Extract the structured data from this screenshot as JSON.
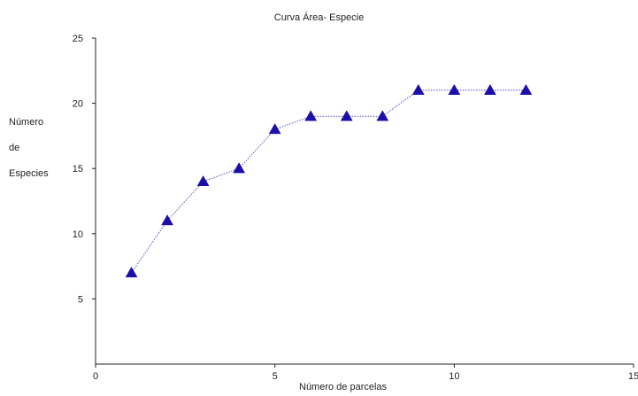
{
  "chart_data": {
    "type": "line",
    "title": "Curva Área- Especie",
    "xlabel": "Número de parcelas",
    "ylabel_lines": [
      "Número",
      "de",
      "Especies"
    ],
    "x": [
      1,
      2,
      3,
      4,
      5,
      6,
      7,
      8,
      9,
      10,
      11,
      12
    ],
    "y": [
      7,
      11,
      14,
      15,
      18,
      19,
      19,
      19,
      21,
      21,
      21,
      21
    ],
    "xlim": [
      0,
      15
    ],
    "ylim": [
      0,
      25
    ],
    "xticks": [
      "0",
      "5",
      "10",
      "15"
    ],
    "yticks": [
      "5",
      "10",
      "15",
      "20",
      "25"
    ],
    "marker": "triangle",
    "line_style": "dotted",
    "grid": false,
    "colors": {
      "marker": "#1c0fa8",
      "line": "#6a6fd0",
      "axis": "#222222"
    }
  }
}
